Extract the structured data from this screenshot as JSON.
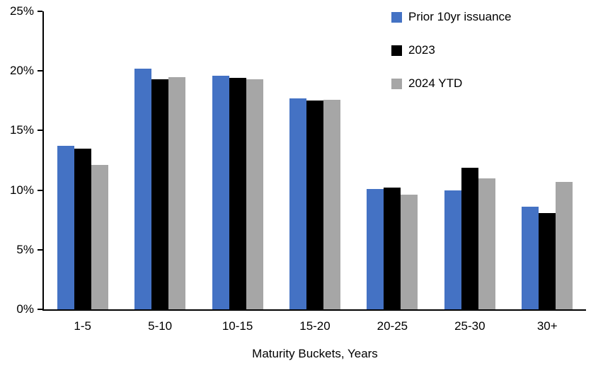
{
  "chart_data": {
    "type": "bar",
    "title": "",
    "xlabel": "Maturity Buckets, Years",
    "ylabel": "",
    "categories": [
      "1-5",
      "5-10",
      "10-15",
      "15-20",
      "20-25",
      "25-30",
      "30+"
    ],
    "series": [
      {
        "name": "Prior 10yr issuance",
        "color": "#4472C4",
        "values": [
          13.7,
          20.2,
          19.6,
          17.7,
          10.1,
          10.0,
          8.6
        ]
      },
      {
        "name": "2023",
        "color": "#000000",
        "values": [
          13.5,
          19.3,
          19.4,
          17.5,
          10.2,
          11.9,
          8.1
        ]
      },
      {
        "name": "2024 YTD",
        "color": "#A6A6A6",
        "values": [
          12.1,
          19.5,
          19.3,
          17.6,
          9.6,
          11.0,
          10.7
        ]
      }
    ],
    "ylim": [
      0,
      25
    ],
    "ytick_values": [
      0,
      5,
      10,
      15,
      20,
      25
    ],
    "ytick_labels": [
      "0%",
      "5%",
      "10%",
      "15%",
      "20%",
      "25%"
    ],
    "grid": false,
    "legend_position": "top-right",
    "axis_color": "#000000"
  }
}
